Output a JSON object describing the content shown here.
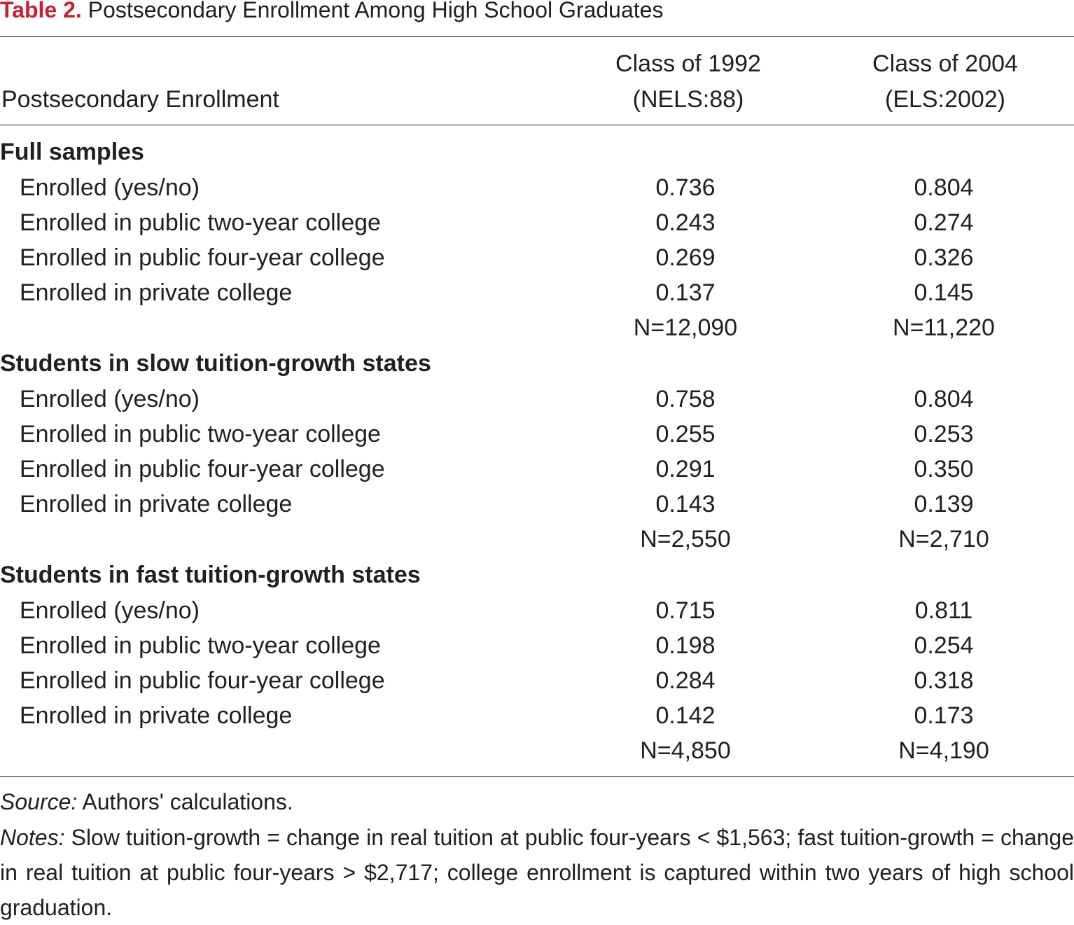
{
  "title": {
    "label": "Table 2.",
    "text": "Postsecondary Enrollment Among High School Graduates"
  },
  "header": {
    "row_label": "Postsecondary Enrollment",
    "col1_line1": "Class of 1992",
    "col1_line2": "(NELS:88)",
    "col2_line1": "Class of 2004",
    "col2_line2": "(ELS:2002)"
  },
  "sections": [
    {
      "title": "Full samples",
      "rows": [
        {
          "label": "Enrolled (yes/no)",
          "v1992": "0.736",
          "v2004": "0.804"
        },
        {
          "label": "Enrolled in public two-year college",
          "v1992": "0.243",
          "v2004": "0.274"
        },
        {
          "label": "Enrolled in public four-year college",
          "v1992": "0.269",
          "v2004": "0.326"
        },
        {
          "label": "Enrolled in private college",
          "v1992": "0.137",
          "v2004": "0.145"
        }
      ],
      "n1992": "N=12,090",
      "n2004": "N=11,220"
    },
    {
      "title": "Students in slow tuition-growth states",
      "rows": [
        {
          "label": "Enrolled (yes/no)",
          "v1992": "0.758",
          "v2004": "0.804"
        },
        {
          "label": "Enrolled in public two-year college",
          "v1992": "0.255",
          "v2004": "0.253"
        },
        {
          "label": "Enrolled in public four-year college",
          "v1992": "0.291",
          "v2004": "0.350"
        },
        {
          "label": "Enrolled in private college",
          "v1992": "0.143",
          "v2004": "0.139"
        }
      ],
      "n1992": "N=2,550",
      "n2004": "N=2,710"
    },
    {
      "title": "Students in fast tuition-growth states",
      "rows": [
        {
          "label": "Enrolled (yes/no)",
          "v1992": "0.715",
          "v2004": "0.811"
        },
        {
          "label": "Enrolled in public two-year college",
          "v1992": "0.198",
          "v2004": "0.254"
        },
        {
          "label": "Enrolled in public four-year college",
          "v1992": "0.284",
          "v2004": "0.318"
        },
        {
          "label": "Enrolled in private college",
          "v1992": "0.142",
          "v2004": "0.173"
        }
      ],
      "n1992": "N=4,850",
      "n2004": "N=4,190"
    }
  ],
  "footer": {
    "source_label": "Source:",
    "source_text": "Authors' calculations.",
    "notes_label": "Notes:",
    "notes_text": "Slow tuition-growth = change in real tuition at public four-years < $1,563; fast tuition-growth = change in real tuition at public four-years > $2,717; college enrollment is captured within two years of high school graduation."
  },
  "colors": {
    "title_label": "#c8202f",
    "text": "#231f20",
    "rule": "#231f20"
  }
}
